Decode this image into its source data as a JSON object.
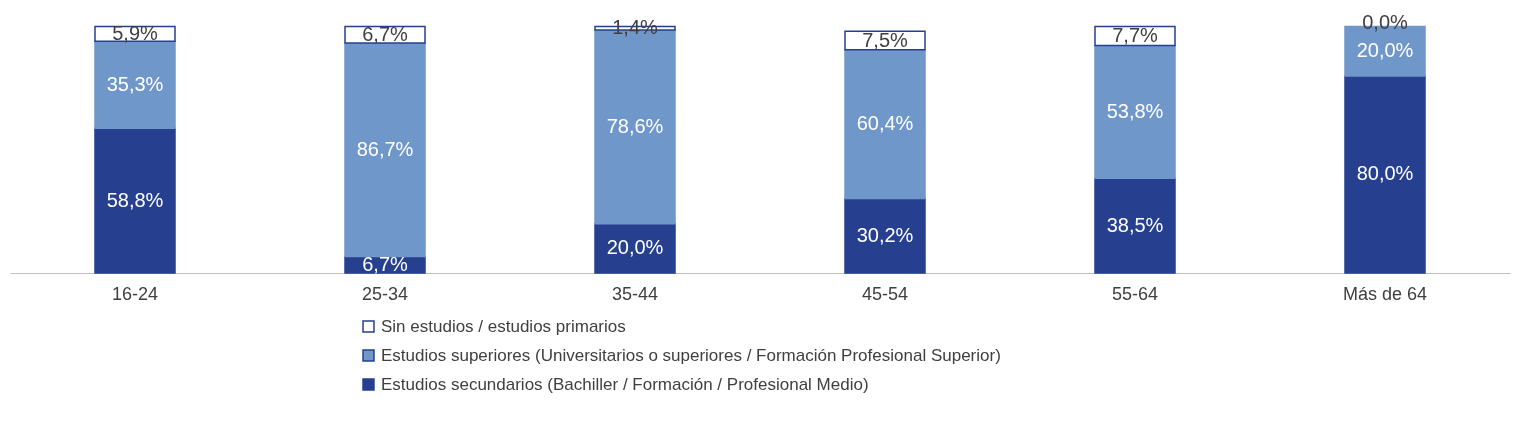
{
  "chart_data": {
    "type": "bar",
    "stacked": true,
    "legend": "bottom",
    "categories": [
      "16-24",
      "25-34",
      "35-44",
      "45-54",
      "55-64",
      "Más de 64"
    ],
    "series": [
      {
        "name": "Estudios secundarios (Bachiller / Formación / Profesional Medio)",
        "color": "#26408f",
        "values": [
          58.8,
          6.7,
          20.0,
          30.2,
          38.5,
          80.0
        ],
        "value_labels": [
          "58,8%",
          "6,7%",
          "20,0%",
          "30,2%",
          "38,5%",
          "80,0%"
        ]
      },
      {
        "name": "Estudios superiores (Universitarios o superiores / Formación Profesional Superior)",
        "color": "#6f97c9",
        "values": [
          35.3,
          86.7,
          78.6,
          60.4,
          53.8,
          20.0
        ],
        "value_labels": [
          "35,3%",
          "86,7%",
          "78,6%",
          "60,4%",
          "53,8%",
          "20,0%"
        ]
      },
      {
        "name": "Sin estudios / estudios primarios",
        "color": "#ffffff",
        "values": [
          5.9,
          6.7,
          1.4,
          7.5,
          7.7,
          0.0
        ],
        "value_labels": [
          "5,9%",
          "6,7%",
          "1,4%",
          "7,5%",
          "7,7%",
          "0,0%"
        ]
      }
    ]
  }
}
